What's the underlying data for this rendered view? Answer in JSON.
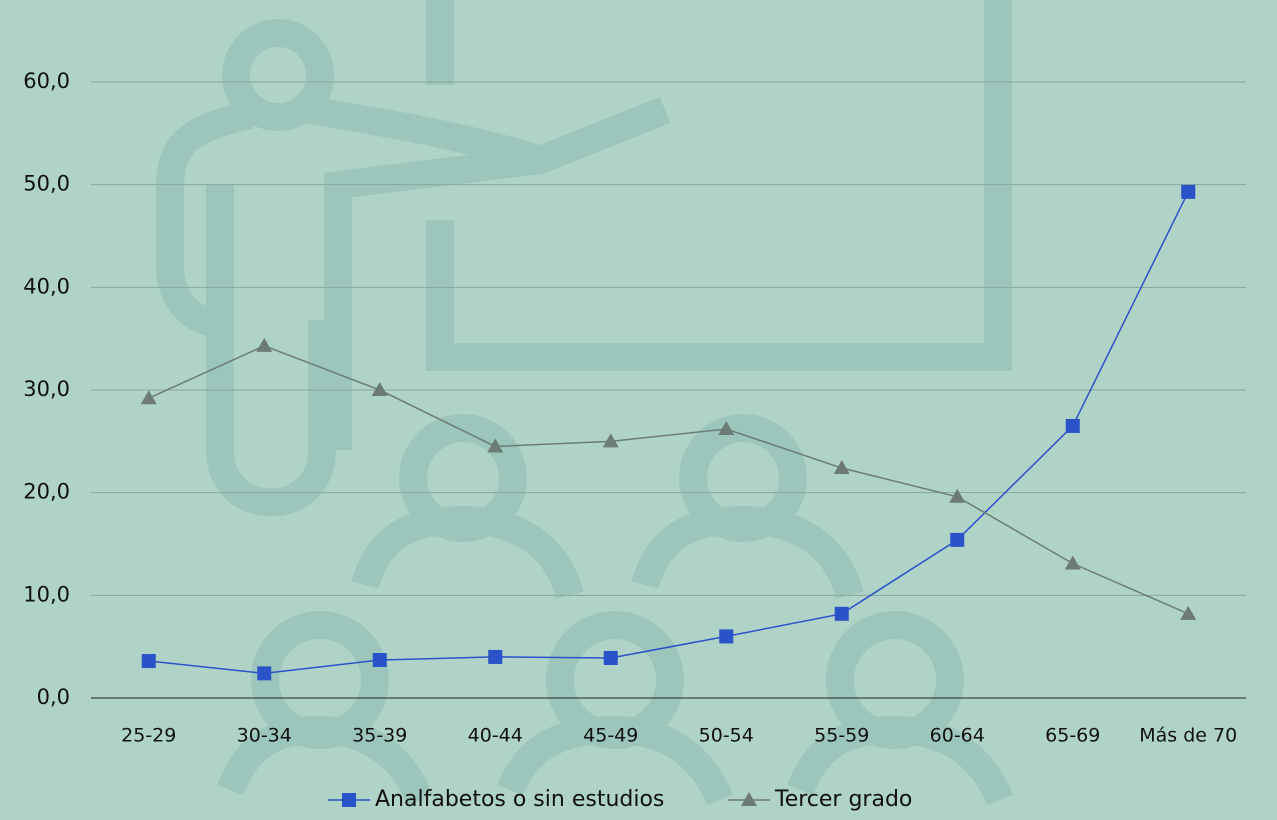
{
  "chart_data": {
    "type": "line",
    "categories": [
      "25-29",
      "30-34",
      "35-39",
      "40-44",
      "45-49",
      "50-54",
      "55-59",
      "60-64",
      "65-69",
      "Más de 70"
    ],
    "series": [
      {
        "name": "Analfabetos o sin estudios",
        "color": "#2a52c9",
        "marker": "square",
        "values": [
          3.6,
          2.4,
          3.7,
          4.0,
          3.9,
          6.0,
          8.2,
          15.4,
          26.5,
          49.3
        ]
      },
      {
        "name": "Tercer grado",
        "color": "#6c7b76",
        "marker": "triangle",
        "values": [
          29.2,
          34.3,
          30.0,
          24.5,
          25.0,
          26.2,
          22.4,
          19.6,
          13.1,
          8.2
        ]
      }
    ],
    "ylim": [
      0,
      60
    ],
    "yticks": [
      {
        "value": 0,
        "label": "0,0"
      },
      {
        "value": 10,
        "label": "10,0"
      },
      {
        "value": 20,
        "label": "20,0"
      },
      {
        "value": 30,
        "label": "30,0"
      },
      {
        "value": 40,
        "label": "40,0"
      },
      {
        "value": 50,
        "label": "50,0"
      },
      {
        "value": 60,
        "label": "60,0"
      }
    ],
    "grid": true,
    "legend": "bottom"
  }
}
